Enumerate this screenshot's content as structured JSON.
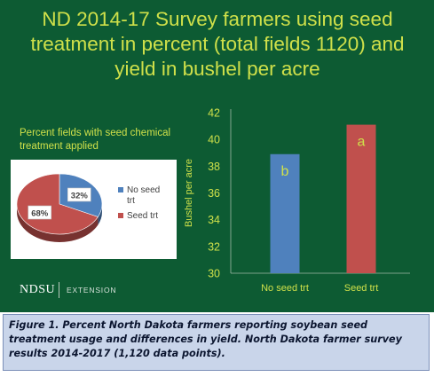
{
  "title": "ND 2014-17 Survey farmers using seed treatment in percent (total fields 1120) and yield in bushel per acre",
  "caption": "Figure 1. Percent North Dakota farmers reporting soybean seed treatment usage and differences in yield. North Dakota farmer survey results 2014-2017 (1,120 data points).",
  "footer": {
    "logo": "NDSU",
    "extension": "EXTENSION"
  },
  "colors": {
    "background": "#0d5b33",
    "title": "#cfe04a",
    "no_seed_trt": "#4f81bd",
    "seed_trt": "#c0504d"
  },
  "chart_data": [
    {
      "type": "pie",
      "title": "Percent fields with seed chemical treatment applied",
      "categories": [
        "No seed trt",
        "Seed trt"
      ],
      "values": [
        32,
        68
      ],
      "value_labels": [
        "32%",
        "68%"
      ],
      "legend": "right"
    },
    {
      "type": "bar",
      "categories": [
        "No seed trt",
        "Seed trt"
      ],
      "values": [
        38.9,
        41.1
      ],
      "bar_labels": [
        "b",
        "a"
      ],
      "ylabel": "Bushel per acre",
      "ylim": [
        30,
        42
      ],
      "yticks": [
        "30",
        "32",
        "34",
        "36",
        "38",
        "40",
        "42"
      ],
      "grid": false
    }
  ]
}
